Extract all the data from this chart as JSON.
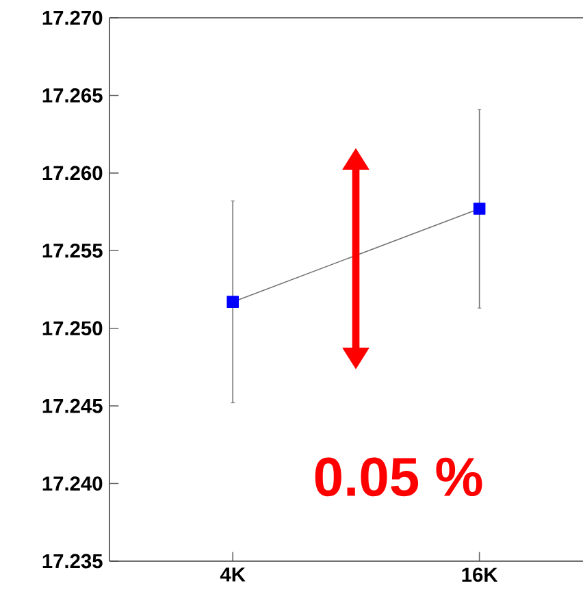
{
  "chart_data": {
    "type": "line",
    "categories": [
      "4K",
      "16K"
    ],
    "series": [
      {
        "color": "#0000ff",
        "values": [
          17.2517,
          17.2577
        ],
        "errors": [
          0.0065,
          0.0064
        ]
      }
    ],
    "ylim": [
      17.235,
      17.27
    ],
    "yticks": [
      17.235,
      {
        "value": 17.24,
        "label": "17.240"
      },
      17.245,
      {
        "value": 17.25,
        "label": "17.250"
      },
      17.255,
      {
        "value": 17.26,
        "label": "17.260"
      },
      17.265,
      {
        "value": 17.27,
        "label": "17.270"
      }
    ],
    "marker": "square",
    "line_style": "solid",
    "grid": false,
    "annotations": [
      "0.05 %"
    ]
  }
}
